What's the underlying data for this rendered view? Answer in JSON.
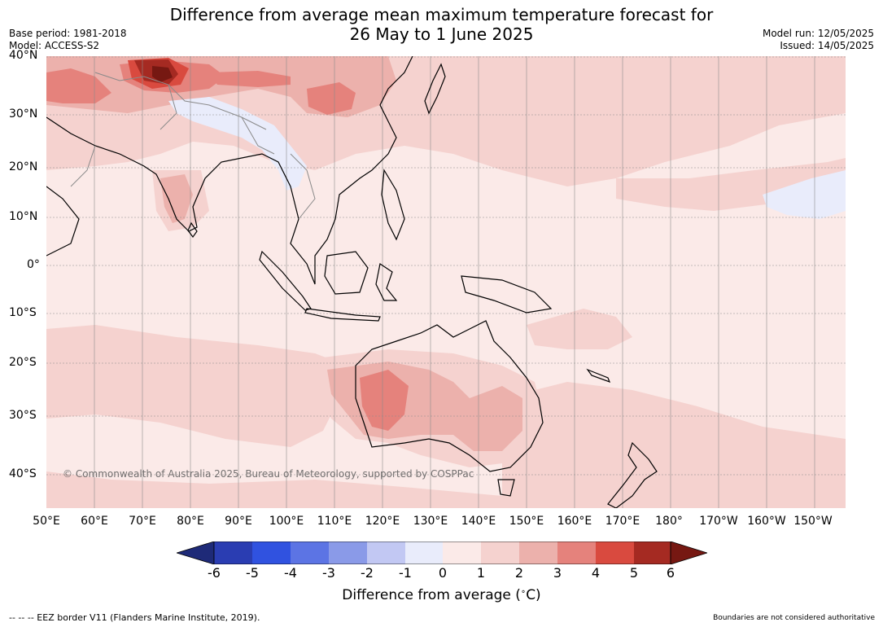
{
  "title": {
    "line1": "Difference from average mean maximum temperature forecast for",
    "line2": "26 May to 1 June 2025"
  },
  "meta": {
    "base_period": "Base period: 1981-2018",
    "model": "Model: ACCESS-S2",
    "model_run": "Model run: 12/05/2025",
    "issued": "Issued: 14/05/2025"
  },
  "map": {
    "lat_labels": [
      "40°N",
      "30°N",
      "20°N",
      "10°N",
      "0°",
      "10°S",
      "20°S",
      "30°S",
      "40°S"
    ],
    "lon_labels": [
      "50°E",
      "60°E",
      "70°E",
      "80°E",
      "90°E",
      "100°E",
      "110°E",
      "120°E",
      "130°E",
      "140°E",
      "150°E",
      "160°E",
      "170°E",
      "180°",
      "170°W",
      "160°W",
      "150°W"
    ],
    "copyright": "© Commonwealth of Australia 2025, Bureau of Meteorology, supported by COSPPac",
    "colors": {
      "c0_1": "#fbeae8",
      "c1_2": "#f5d2cf",
      "c2_3": "#ecb1ac",
      "c3_4": "#e5827c",
      "c4_5": "#d94a3f",
      "c5_6": "#a52a22",
      "cgt6": "#761812",
      "cm1_0": "#e9ecfb"
    }
  },
  "colorbar": {
    "labels": [
      "-6",
      "-5",
      "-4",
      "-3",
      "-2",
      "-1",
      "0",
      "1",
      "2",
      "3",
      "4",
      "5",
      "6"
    ],
    "colors": [
      "#1e2a78",
      "#2a3db2",
      "#3052e0",
      "#5c74e4",
      "#8a9ae8",
      "#c2c8f3",
      "#e9ecfb",
      "#fbeae8",
      "#f5d2cf",
      "#ecb1ac",
      "#e5827c",
      "#d94a3f",
      "#a52a22",
      "#761812"
    ],
    "title": "Difference from average ($^\\circ$C)",
    "title_text": "Difference from average (",
    "title_unit": "C)"
  },
  "footer": {
    "eez": "--  --  -- EEZ border V11 (Flanders Marine Institute, 2019).",
    "boundaries": "Boundaries are not considered authoritative"
  }
}
